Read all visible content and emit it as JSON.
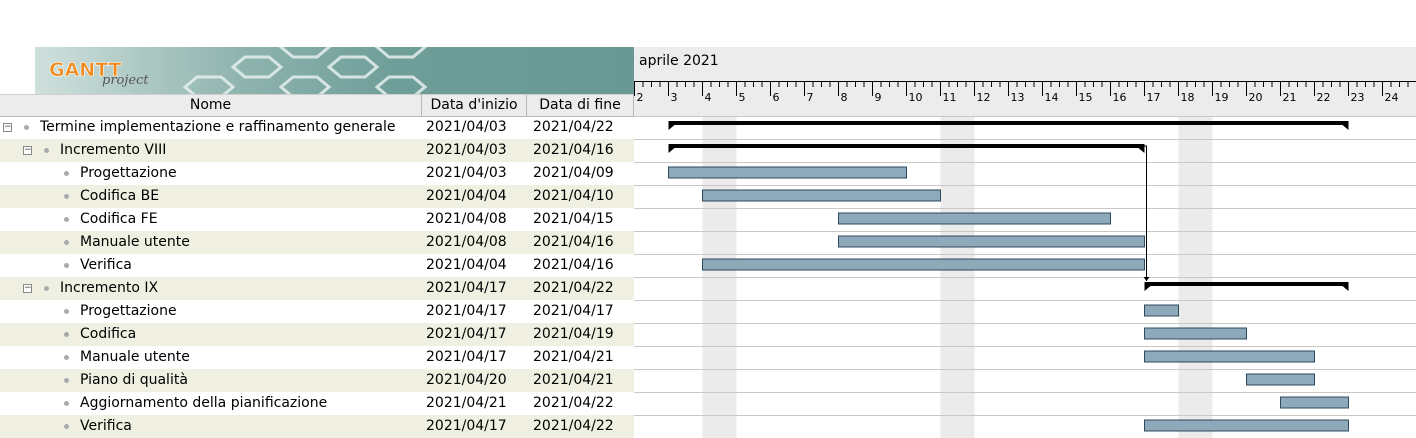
{
  "logo": {
    "word": "GANTT",
    "sub": "project"
  },
  "table": {
    "headers": {
      "name": "Nome",
      "start": "Data d'inizio",
      "end": "Data di fine"
    },
    "rows": [
      {
        "name": "Termine implementazione e raffinamento generale",
        "start": "2021/04/03",
        "end": "2021/04/22"
      },
      {
        "name": "Incremento VIII",
        "start": "2021/04/03",
        "end": "2021/04/16"
      },
      {
        "name": "Progettazione",
        "start": "2021/04/03",
        "end": "2021/04/09"
      },
      {
        "name": "Codifica BE",
        "start": "2021/04/04",
        "end": "2021/04/10"
      },
      {
        "name": "Codifica FE",
        "start": "2021/04/08",
        "end": "2021/04/15"
      },
      {
        "name": "Manuale utente",
        "start": "2021/04/08",
        "end": "2021/04/16"
      },
      {
        "name": "Verifica",
        "start": "2021/04/04",
        "end": "2021/04/16"
      },
      {
        "name": "Incremento IX",
        "start": "2021/04/17",
        "end": "2021/04/22"
      },
      {
        "name": "Progettazione",
        "start": "2021/04/17",
        "end": "2021/04/17"
      },
      {
        "name": "Codifica",
        "start": "2021/04/17",
        "end": "2021/04/19"
      },
      {
        "name": "Manuale utente",
        "start": "2021/04/17",
        "end": "2021/04/21"
      },
      {
        "name": "Piano di qualità",
        "start": "2021/04/20",
        "end": "2021/04/21"
      },
      {
        "name": "Aggiornamento della pianificazione",
        "start": "2021/04/21",
        "end": "2021/04/22"
      },
      {
        "name": "Verifica",
        "start": "2021/04/17",
        "end": "2021/04/22"
      }
    ]
  },
  "timeline": {
    "month": "aprile 2021",
    "days": [
      "2",
      "3",
      "4",
      "5",
      "6",
      "7",
      "8",
      "9",
      "10",
      "11",
      "12",
      "13",
      "14",
      "15",
      "16",
      "17",
      "18",
      "19",
      "20",
      "21",
      "22",
      "23",
      "24"
    ],
    "weekend_days": [
      4,
      11,
      18
    ]
  },
  "colors": {
    "bar": "#8ea9b9",
    "bar_border": "#2e4a5c",
    "summary": "#000000",
    "weekend": "#ebebeb",
    "alt_row": "#f0f0e2"
  },
  "chart_data": {
    "type": "gantt",
    "title": "aprile 2021",
    "x": [
      "2",
      "3",
      "4",
      "5",
      "6",
      "7",
      "8",
      "9",
      "10",
      "11",
      "12",
      "13",
      "14",
      "15",
      "16",
      "17",
      "18",
      "19",
      "20",
      "21",
      "22",
      "23",
      "24"
    ],
    "tasks": [
      {
        "name": "Termine implementazione e raffinamento generale",
        "start": 3,
        "end": 22,
        "kind": "summary"
      },
      {
        "name": "Incremento VIII",
        "start": 3,
        "end": 16,
        "kind": "summary"
      },
      {
        "name": "Progettazione",
        "start": 3,
        "end": 9,
        "kind": "task"
      },
      {
        "name": "Codifica BE",
        "start": 4,
        "end": 10,
        "kind": "task"
      },
      {
        "name": "Codifica FE",
        "start": 8,
        "end": 15,
        "kind": "task"
      },
      {
        "name": "Manuale utente",
        "start": 8,
        "end": 16,
        "kind": "task"
      },
      {
        "name": "Verifica",
        "start": 4,
        "end": 16,
        "kind": "task"
      },
      {
        "name": "Incremento IX",
        "start": 17,
        "end": 22,
        "kind": "summary"
      },
      {
        "name": "Progettazione",
        "start": 17,
        "end": 17,
        "kind": "task"
      },
      {
        "name": "Codifica",
        "start": 17,
        "end": 19,
        "kind": "task"
      },
      {
        "name": "Manuale utente",
        "start": 17,
        "end": 21,
        "kind": "task"
      },
      {
        "name": "Piano di qualità",
        "start": 20,
        "end": 21,
        "kind": "task"
      },
      {
        "name": "Aggiornamento della pianificazione",
        "start": 21,
        "end": 22,
        "kind": "task"
      },
      {
        "name": "Verifica",
        "start": 17,
        "end": 22,
        "kind": "task"
      }
    ],
    "dependencies": [
      {
        "from": "Incremento VIII",
        "to": "Incremento IX"
      }
    ]
  }
}
